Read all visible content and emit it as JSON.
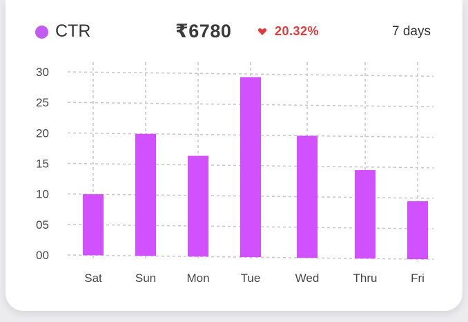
{
  "header": {
    "metric_label": "CTR",
    "amount": "₹6780",
    "change": "20.32%",
    "change_direction": "down",
    "period": "7 days"
  },
  "colors": {
    "bar": "#d150ff",
    "legend_dot": "#c45bf0",
    "change": "#e03a3a",
    "grid": "#c9c9c9",
    "card": "#ffffff",
    "background": "#ececef"
  },
  "chart_data": {
    "type": "bar",
    "categories": [
      "Sat",
      "Sun",
      "Mon",
      "Tue",
      "Wed",
      "Thru",
      "Fri"
    ],
    "series": [
      {
        "values": [
          10,
          20,
          16.5,
          29.5,
          20,
          14.5,
          9.5
        ]
      }
    ],
    "yticks": [
      0,
      5,
      10,
      15,
      20,
      25,
      30
    ],
    "ytick_labels": [
      "00",
      "05",
      "10",
      "15",
      "20",
      "25",
      "30"
    ],
    "ylim": [
      0,
      30
    ],
    "grid": true,
    "legend": "top-left",
    "title": "",
    "xlabel": "",
    "ylabel": ""
  }
}
